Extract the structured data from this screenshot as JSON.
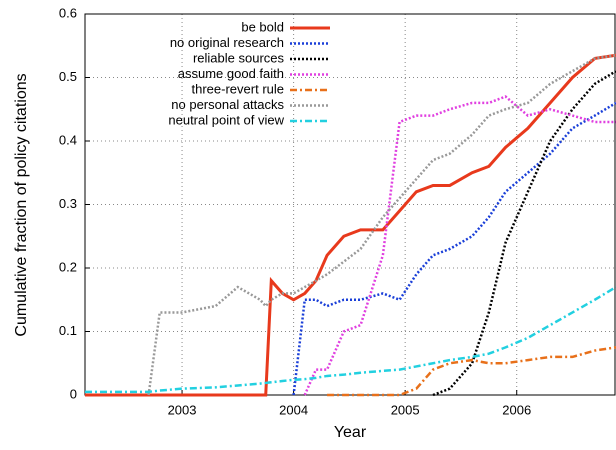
{
  "chart_data": {
    "type": "line",
    "xlabel": "Year",
    "ylabel": "Cumulative fraction of policy citations",
    "x": [
      2002.13,
      2002.5,
      2002.7,
      2002.8,
      2003.0,
      2003.3,
      2003.5,
      2003.7,
      2003.75,
      2003.8,
      2003.9,
      2004.0,
      2004.1,
      2004.2,
      2004.3,
      2004.45,
      2004.6,
      2004.8,
      2004.95,
      2005.1,
      2005.25,
      2005.4,
      2005.6,
      2005.75,
      2005.9,
      2006.1,
      2006.3,
      2006.5,
      2006.7,
      2006.89
    ],
    "series": [
      {
        "name": "be bold",
        "color": "#e8391c",
        "style": "solid",
        "values": [
          0,
          0,
          0,
          0,
          0,
          0,
          0,
          0,
          0,
          0.18,
          0.16,
          0.15,
          0.16,
          0.18,
          0.22,
          0.25,
          0.26,
          0.26,
          0.29,
          0.32,
          0.33,
          0.33,
          0.35,
          0.36,
          0.39,
          0.42,
          0.46,
          0.5,
          0.53,
          0.535
        ]
      },
      {
        "name": "no original research",
        "color": "#1a3fd8",
        "style": "dotted",
        "values": [
          null,
          null,
          null,
          null,
          null,
          null,
          null,
          null,
          null,
          null,
          null,
          0,
          0.15,
          0.15,
          0.14,
          0.15,
          0.15,
          0.16,
          0.15,
          0.19,
          0.22,
          0.23,
          0.25,
          0.28,
          0.32,
          0.35,
          0.38,
          0.42,
          0.44,
          0.46
        ]
      },
      {
        "name": "reliable sources",
        "color": "#000000",
        "style": "dotted",
        "values": [
          null,
          null,
          null,
          null,
          null,
          null,
          null,
          null,
          null,
          null,
          null,
          null,
          null,
          null,
          null,
          null,
          null,
          null,
          null,
          null,
          0,
          0.01,
          0.05,
          0.13,
          0.24,
          0.32,
          0.4,
          0.45,
          0.49,
          0.51
        ]
      },
      {
        "name": "assume good faith",
        "color": "#e040e0",
        "style": "dotted",
        "values": [
          null,
          null,
          null,
          null,
          null,
          null,
          null,
          null,
          null,
          null,
          null,
          null,
          0,
          0.04,
          0.04,
          0.1,
          0.11,
          0.22,
          0.43,
          0.44,
          0.44,
          0.45,
          0.46,
          0.46,
          0.47,
          0.44,
          0.45,
          0.44,
          0.43,
          0.43
        ]
      },
      {
        "name": "three-revert rule",
        "color": "#e8701a",
        "style": "dash-dot",
        "values": [
          null,
          null,
          null,
          null,
          null,
          null,
          null,
          null,
          null,
          null,
          null,
          null,
          null,
          null,
          0,
          0,
          0,
          0,
          0,
          0.01,
          0.04,
          0.05,
          0.055,
          0.05,
          0.05,
          0.055,
          0.06,
          0.06,
          0.07,
          0.075
        ]
      },
      {
        "name": "no personal attacks",
        "color": "#999999",
        "style": "dotted",
        "values": [
          null,
          null,
          0,
          0.13,
          0.13,
          0.14,
          0.17,
          0.15,
          0.14,
          0.15,
          0.16,
          0.16,
          0.17,
          0.18,
          0.19,
          0.21,
          0.23,
          0.28,
          0.31,
          0.34,
          0.37,
          0.38,
          0.41,
          0.44,
          0.45,
          0.46,
          0.49,
          0.51,
          0.53,
          0.535
        ]
      },
      {
        "name": "neutral point of view",
        "color": "#22d0e0",
        "style": "dash-dot",
        "values": [
          0.005,
          0.005,
          0.005,
          0.007,
          0.01,
          0.012,
          0.015,
          0.018,
          0.019,
          0.02,
          0.022,
          0.024,
          0.025,
          0.027,
          0.03,
          0.032,
          0.035,
          0.038,
          0.04,
          0.045,
          0.05,
          0.055,
          0.06,
          0.065,
          0.075,
          0.09,
          0.11,
          0.13,
          0.15,
          0.17
        ]
      }
    ],
    "xlim": [
      2002.13,
      2006.89
    ],
    "xticks": [
      2003,
      2004,
      2005,
      2006
    ],
    "ylim": [
      0,
      0.6
    ],
    "yticks": [
      0,
      0.1,
      0.2,
      0.3,
      0.4,
      0.5,
      0.6
    ],
    "grid": true,
    "legend": "upper left"
  }
}
